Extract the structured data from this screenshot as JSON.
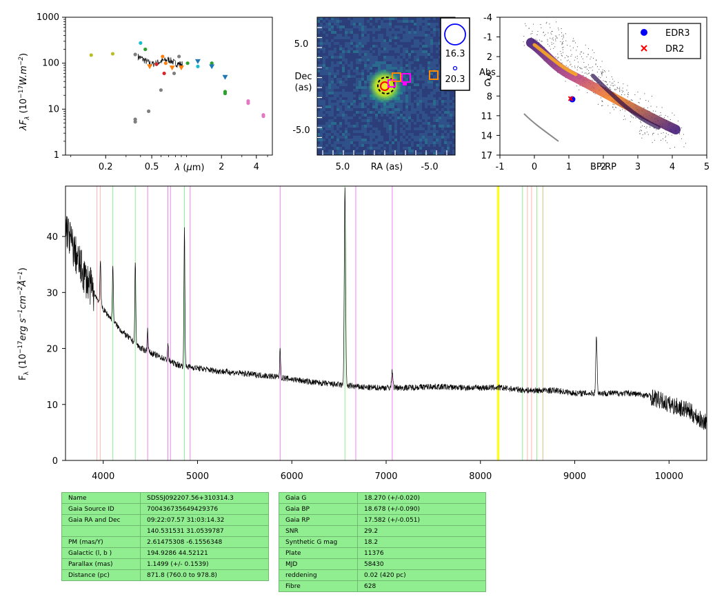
{
  "chart_data": [
    {
      "type": "scatter",
      "title": "",
      "xlabel": "λ (μm)",
      "ylabel": "λF_λ (10^-17 W.m^-2)",
      "xscale": "log",
      "yscale": "log",
      "xlim": [
        0.09,
        5.5
      ],
      "ylim": [
        1,
        1000
      ],
      "xticks": [
        "0.2",
        "0.5",
        "2",
        "4"
      ],
      "yticks": [
        "1",
        "10",
        "100",
        "1000"
      ],
      "points": [
        {
          "x": 0.15,
          "y": 150,
          "color": "#bcbd22"
        },
        {
          "x": 0.23,
          "y": 160,
          "color": "#bcbd22"
        },
        {
          "x": 0.36,
          "y": 155,
          "color": "#7f7f7f"
        },
        {
          "x": 0.36,
          "y": 6,
          "color": "#7f7f7f"
        },
        {
          "x": 0.36,
          "y": 5.3,
          "color": "#7f7f7f"
        },
        {
          "x": 0.4,
          "y": 275,
          "color": "#17becf"
        },
        {
          "x": 0.44,
          "y": 200,
          "color": "#2ca02c"
        },
        {
          "x": 0.47,
          "y": 9,
          "color": "#7f7f7f"
        },
        {
          "x": 0.48,
          "y": 85,
          "color": "#ff7f0e"
        },
        {
          "x": 0.55,
          "y": 95,
          "color": "#d62728"
        },
        {
          "x": 0.6,
          "y": 26,
          "color": "#7f7f7f"
        },
        {
          "x": 0.62,
          "y": 140,
          "color": "#ff7f0e"
        },
        {
          "x": 0.64,
          "y": 60,
          "color": "#d62728"
        },
        {
          "x": 0.66,
          "y": 100,
          "color": "#ff7f0e"
        },
        {
          "x": 0.75,
          "y": 80,
          "color": "#ff7f0e"
        },
        {
          "x": 0.78,
          "y": 60,
          "color": "#7f7f7f"
        },
        {
          "x": 0.86,
          "y": 140,
          "color": "#7f7f7f"
        },
        {
          "x": 0.9,
          "y": 80,
          "color": "#ff7f0e"
        },
        {
          "x": 1.02,
          "y": 100,
          "color": "#2ca02c"
        },
        {
          "x": 1.25,
          "y": 110,
          "color": "#1f77b4"
        },
        {
          "x": 1.25,
          "y": 85,
          "color": "#17becf"
        },
        {
          "x": 1.65,
          "y": 100,
          "color": "#2ca02c"
        },
        {
          "x": 1.65,
          "y": 85,
          "color": "#1f77b4"
        },
        {
          "x": 2.15,
          "y": 50,
          "color": "#1f77b4"
        },
        {
          "x": 2.15,
          "y": 24,
          "color": "#2ca02c"
        },
        {
          "x": 2.15,
          "y": 22,
          "color": "#2ca02c"
        },
        {
          "x": 3.4,
          "y": 15,
          "color": "#e377c2"
        },
        {
          "x": 3.4,
          "y": 13.5,
          "color": "#e377c2"
        },
        {
          "x": 4.6,
          "y": 7.5,
          "color": "#e377c2"
        },
        {
          "x": 4.6,
          "y": 7,
          "color": "#e377c2"
        }
      ],
      "spectrum_x": [
        0.38,
        0.45,
        0.5,
        0.6,
        0.7,
        0.8,
        0.92
      ],
      "spectrum_y": [
        140,
        110,
        95,
        110,
        120,
        100,
        95
      ]
    },
    {
      "type": "heatmap",
      "title": "",
      "xlabel": "RA (as)",
      "ylabel": "Dec\n(as)",
      "xticks": [
        "5.0",
        "-5.0"
      ],
      "yticks": [
        "5.0",
        "-5.0"
      ],
      "legend_mags": [
        "16.3",
        "20.3"
      ],
      "colormap": "viridis"
    },
    {
      "type": "scatter",
      "title": "",
      "xlabel": "BP-RP",
      "ylabel": "Abs\nG",
      "xlim": [
        -1,
        5
      ],
      "ylim": [
        17,
        -4
      ],
      "xticks": [
        "-1",
        "0",
        "1",
        "2",
        "3",
        "4",
        "5"
      ],
      "yticks": [
        "-4",
        "-1",
        "2",
        "5",
        "8",
        "11",
        "14",
        "17"
      ],
      "series": [
        {
          "name": "EDR3",
          "x": [
            1.1
          ],
          "y": [
            8.5
          ],
          "color": "#0000ff"
        },
        {
          "name": "DR2",
          "x": [
            1.05
          ],
          "y": [
            8.4
          ],
          "color": "#ff0000"
        }
      ]
    },
    {
      "type": "line",
      "title": "",
      "xlabel": "",
      "ylabel": "F_λ (10^-17 erg s^-1 cm^-2 Å^-1)",
      "xlim": [
        3600,
        10400
      ],
      "ylim": [
        0,
        49
      ],
      "xticks": [
        "4000",
        "5000",
        "6000",
        "7000",
        "8000",
        "9000",
        "10000"
      ],
      "yticks": [
        "0",
        "10",
        "20",
        "30",
        "40"
      ],
      "continuum_x": [
        3600,
        3700,
        3800,
        3900,
        4000,
        4200,
        4400,
        4600,
        4800,
        5000,
        5200,
        5500,
        5800,
        6000,
        6200,
        6500,
        6800,
        7000,
        7200,
        7500,
        7800,
        8000,
        8200,
        8500,
        8800,
        9000,
        9300,
        9600,
        9800,
        10000,
        10200,
        10350
      ],
      "continuum_y": [
        42,
        37,
        33,
        30,
        27,
        23,
        20,
        18.5,
        17,
        16.5,
        16,
        15.5,
        15,
        14.5,
        14,
        13.5,
        13,
        13,
        13,
        13.2,
        13,
        13,
        13,
        12.5,
        12.5,
        12,
        12,
        12,
        11.5,
        10,
        9,
        7
      ],
      "emission_lines": [
        {
          "x": 3970,
          "h": 8
        },
        {
          "x": 4102,
          "h": 10
        },
        {
          "x": 4340,
          "h": 15
        },
        {
          "x": 4471,
          "h": 4
        },
        {
          "x": 4686,
          "h": 3
        },
        {
          "x": 4861,
          "h": 25
        },
        {
          "x": 5876,
          "h": 5
        },
        {
          "x": 6563,
          "h": 35
        },
        {
          "x": 7065,
          "h": 3
        },
        {
          "x": 9230,
          "h": 10
        }
      ],
      "vlines": [
        {
          "x": 3933,
          "color": "#ffb3b3"
        },
        {
          "x": 3968,
          "color": "#ffb3b3"
        },
        {
          "x": 4102,
          "color": "#90ee90"
        },
        {
          "x": 4340,
          "color": "#90ee90"
        },
        {
          "x": 4471,
          "color": "#ee82ee"
        },
        {
          "x": 4686,
          "color": "#ee82ee"
        },
        {
          "x": 4713,
          "color": "#ee82ee"
        },
        {
          "x": 4861,
          "color": "#90ee90"
        },
        {
          "x": 4922,
          "color": "#ee82ee"
        },
        {
          "x": 5876,
          "color": "#ee82ee"
        },
        {
          "x": 6563,
          "color": "#90ee90"
        },
        {
          "x": 6678,
          "color": "#ee82ee"
        },
        {
          "x": 7065,
          "color": "#ee82ee"
        },
        {
          "x": 8183,
          "color": "#ffff00"
        },
        {
          "x": 8195,
          "color": "#ffff00"
        },
        {
          "x": 8446,
          "color": "#90ee90"
        },
        {
          "x": 8498,
          "color": "#ffb3b3"
        },
        {
          "x": 8542,
          "color": "#ffb3b3"
        },
        {
          "x": 8598,
          "color": "#90ee90"
        },
        {
          "x": 8662,
          "color": "#d0c080"
        }
      ]
    }
  ],
  "tables": {
    "left": [
      [
        "Name",
        "SDSSJ092207.56+310314.3"
      ],
      [
        "Gaia Source ID",
        "700436735649429376"
      ],
      [
        "Gaia RA and Dec",
        "09:22:07.57    31:03:14.32"
      ],
      [
        "",
        "140.531531    31.0539787"
      ],
      [
        "PM (mas/Y)",
        "2.61475308    -6.1556348"
      ],
      [
        "Galactic (l, b )",
        "194.9286    44.52121"
      ],
      [
        "Parallax (mas)",
        "1.1499 (+/- 0.1539)"
      ],
      [
        "Distance (pc)",
        "871.8 (760.0 to 978.8)"
      ]
    ],
    "right": [
      [
        "Gaia G",
        "18.270 (+/-0.020)"
      ],
      [
        "Gaia BP",
        "18.678 (+/-0.090)"
      ],
      [
        "Gaia RP",
        "17.582 (+/-0.051)"
      ],
      [
        "SNR",
        "29.2"
      ],
      [
        "Synthetic G mag",
        "18.2"
      ],
      [
        "Plate",
        "11376"
      ],
      [
        "MJD",
        "58430"
      ],
      [
        "reddening",
        "0.02 (420 pc)"
      ],
      [
        "Fibre",
        "628"
      ]
    ]
  }
}
